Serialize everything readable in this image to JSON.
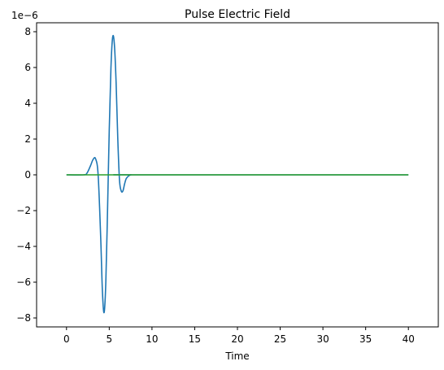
{
  "chart_data": {
    "type": "line",
    "title": "Pulse Electric Field",
    "xlabel": "Time",
    "ylabel": "",
    "y_offset_text": "1e−6",
    "xlim": [
      -3.5,
      43.5
    ],
    "ylim": [
      -8.5,
      8.5
    ],
    "x_ticks": [
      0,
      5,
      10,
      15,
      20,
      25,
      30,
      35,
      40
    ],
    "x_tick_labels": [
      "0",
      "5",
      "10",
      "15",
      "20",
      "25",
      "30",
      "35",
      "40"
    ],
    "y_ticks": [
      -8,
      -6,
      -4,
      -2,
      0,
      2,
      4,
      6,
      8
    ],
    "y_tick_labels": [
      "−8",
      "−6",
      "−4",
      "−2",
      "0",
      "2",
      "4",
      "6",
      "8"
    ],
    "grid": false,
    "series": [
      {
        "color": "#1f77b4",
        "x": [
          0,
          2.0,
          2.4,
          2.8,
          3.1,
          3.4,
          3.7,
          4.0,
          4.2,
          4.4,
          4.6,
          4.8,
          5.0,
          5.2,
          5.4,
          5.6,
          5.8,
          6.0,
          6.2,
          6.4,
          6.6,
          6.8,
          7.0,
          7.3,
          7.6,
          8.0,
          40
        ],
        "y": [
          0,
          0,
          0.1,
          0.5,
          0.85,
          0.9,
          0.0,
          -3.5,
          -6.5,
          -7.7,
          -6.0,
          -2.0,
          2.5,
          6.0,
          7.7,
          7.3,
          5.2,
          2.0,
          -0.3,
          -0.9,
          -0.9,
          -0.5,
          -0.2,
          -0.05,
          0,
          0,
          0
        ]
      },
      {
        "color": "#2ca02c",
        "x": [
          0,
          40
        ],
        "y": [
          0,
          0
        ]
      }
    ]
  }
}
